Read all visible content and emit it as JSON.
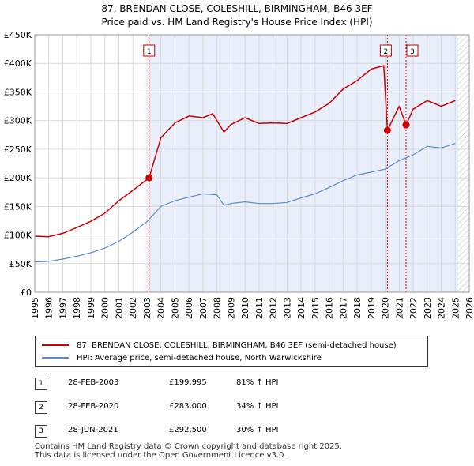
{
  "title_line1": "87, BRENDAN CLOSE, COLESHILL, BIRMINGHAM, B46 3EF",
  "title_line2": "Price paid vs. HM Land Registry's House Price Index (HPI)",
  "chart_data": {
    "type": "line",
    "x_range": [
      1995,
      2026
    ],
    "ylim": [
      0,
      450000
    ],
    "y_ticks": [
      0,
      50000,
      100000,
      150000,
      200000,
      250000,
      300000,
      350000,
      400000,
      450000
    ],
    "y_tick_labels": [
      "£0",
      "£50K",
      "£100K",
      "£150K",
      "£200K",
      "£250K",
      "£300K",
      "£350K",
      "£400K",
      "£450K"
    ],
    "x_ticks": [
      1995,
      1996,
      1997,
      1998,
      1999,
      2000,
      2001,
      2002,
      2003,
      2004,
      2005,
      2006,
      2007,
      2008,
      2009,
      2010,
      2011,
      2012,
      2013,
      2014,
      2015,
      2016,
      2017,
      2018,
      2019,
      2020,
      2021,
      2022,
      2023,
      2024,
      2025,
      2026
    ],
    "grid": true,
    "shaded_region": [
      2003.16,
      2025.2
    ],
    "hatched_region": [
      2025.2,
      2026
    ],
    "series": [
      {
        "name": "87, BRENDAN CLOSE, COLESHILL, BIRMINGHAM, B46 3EF (semi-detached house)",
        "color": "#cc0000",
        "x": [
          1995,
          1996,
          1997,
          1998,
          1999,
          2000,
          2001,
          2002,
          2003.16,
          2004,
          2005,
          2006,
          2007,
          2007.7,
          2008.5,
          2009,
          2010,
          2011,
          2012,
          2013,
          2014,
          2015,
          2016,
          2017,
          2018,
          2019,
          2019.9,
          2020.16,
          2021,
          2021.49,
          2022,
          2023,
          2024,
          2025
        ],
        "y": [
          98000,
          97000,
          103000,
          113000,
          124000,
          138000,
          160000,
          178000,
          199995,
          270000,
          296000,
          308000,
          305000,
          312000,
          280000,
          293000,
          305000,
          295000,
          296000,
          295000,
          305000,
          315000,
          330000,
          355000,
          370000,
          390000,
          396000,
          283000,
          325000,
          292500,
          320000,
          335000,
          325000,
          335000
        ]
      },
      {
        "name": "HPI: Average price, semi-detached house, North Warwickshire",
        "color": "#5b8ccc",
        "x": [
          1995,
          1996,
          1997,
          1998,
          1999,
          2000,
          2001,
          2002,
          2003,
          2004,
          2005,
          2006,
          2007,
          2008,
          2008.5,
          2009,
          2010,
          2011,
          2012,
          2013,
          2014,
          2015,
          2016,
          2017,
          2018,
          2019,
          2020,
          2021,
          2022,
          2023,
          2024,
          2025
        ],
        "y": [
          53000,
          54000,
          58000,
          63000,
          69000,
          77000,
          89000,
          105000,
          123000,
          150000,
          160000,
          166000,
          172000,
          170000,
          152000,
          155000,
          158000,
          155000,
          155000,
          157000,
          165000,
          172000,
          183000,
          195000,
          205000,
          210000,
          215000,
          230000,
          240000,
          255000,
          252000,
          260000
        ]
      }
    ],
    "sales": [
      {
        "label": "1",
        "x": 2003.16,
        "y": 199995
      },
      {
        "label": "2",
        "x": 2020.16,
        "y": 283000
      },
      {
        "label": "3",
        "x": 2021.49,
        "y": 292500
      }
    ]
  },
  "legend": {
    "property": "87, BRENDAN CLOSE, COLESHILL, BIRMINGHAM, B46 3EF (semi-detached house)",
    "hpi": "HPI: Average price, semi-detached house, North Warwickshire",
    "property_color": "#cc0000",
    "hpi_color": "#5b8ccc"
  },
  "transactions": [
    {
      "num": "1",
      "date": "28-FEB-2003",
      "price": "£199,995",
      "hpi": "81% ↑ HPI"
    },
    {
      "num": "2",
      "date": "28-FEB-2020",
      "price": "£283,000",
      "hpi": "34% ↑ HPI"
    },
    {
      "num": "3",
      "date": "28-JUN-2021",
      "price": "£292,500",
      "hpi": "30% ↑ HPI"
    }
  ],
  "footer_line1": "Contains HM Land Registry data © Crown copyright and database right 2025.",
  "footer_line2": "This data is licensed under the Open Government Licence v3.0."
}
